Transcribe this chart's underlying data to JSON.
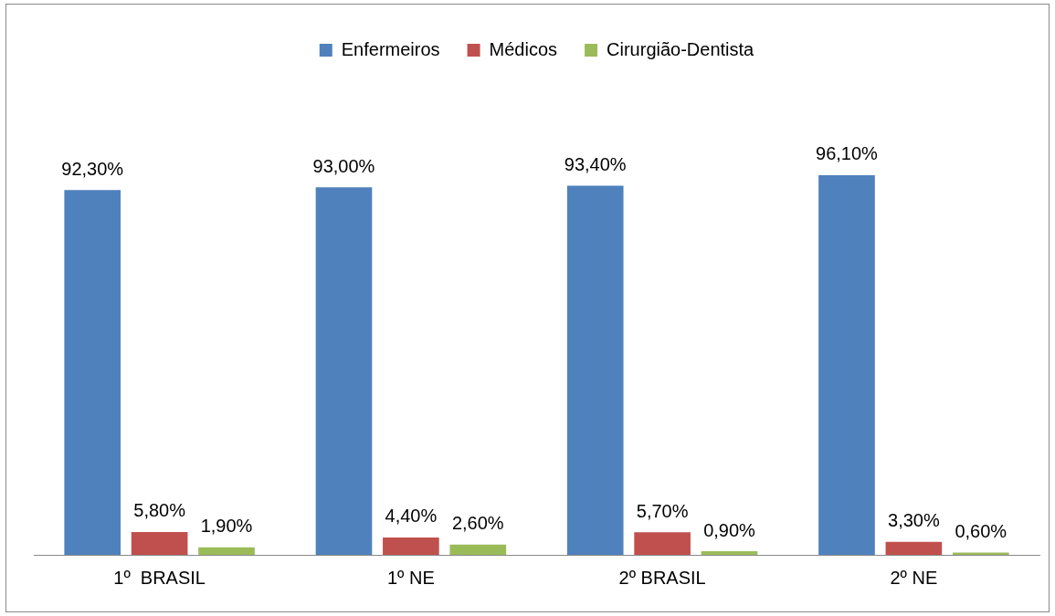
{
  "chart_data": {
    "type": "bar",
    "categories": [
      "1º  BRASIL",
      "1º NE",
      "2º BRASIL",
      "2º NE"
    ],
    "series": [
      {
        "name": "Enfermeiros",
        "color": "#4f81bd",
        "values": [
          92.3,
          93.0,
          93.4,
          96.1
        ],
        "value_labels": [
          "92,30%",
          "93,00%",
          "93,40%",
          "96,10%"
        ]
      },
      {
        "name": "Médicos",
        "color": "#c0504d",
        "values": [
          5.8,
          4.4,
          5.7,
          3.3
        ],
        "value_labels": [
          "5,80%",
          "4,40%",
          "5,70%",
          "3,30%"
        ]
      },
      {
        "name": "Cirurgião-Dentista",
        "color": "#9bbb59",
        "values": [
          1.9,
          2.6,
          0.9,
          0.6
        ],
        "value_labels": [
          "1,90%",
          "2,60%",
          "0,90%",
          "0,60%"
        ]
      }
    ],
    "legend": "top",
    "grid": false
  }
}
